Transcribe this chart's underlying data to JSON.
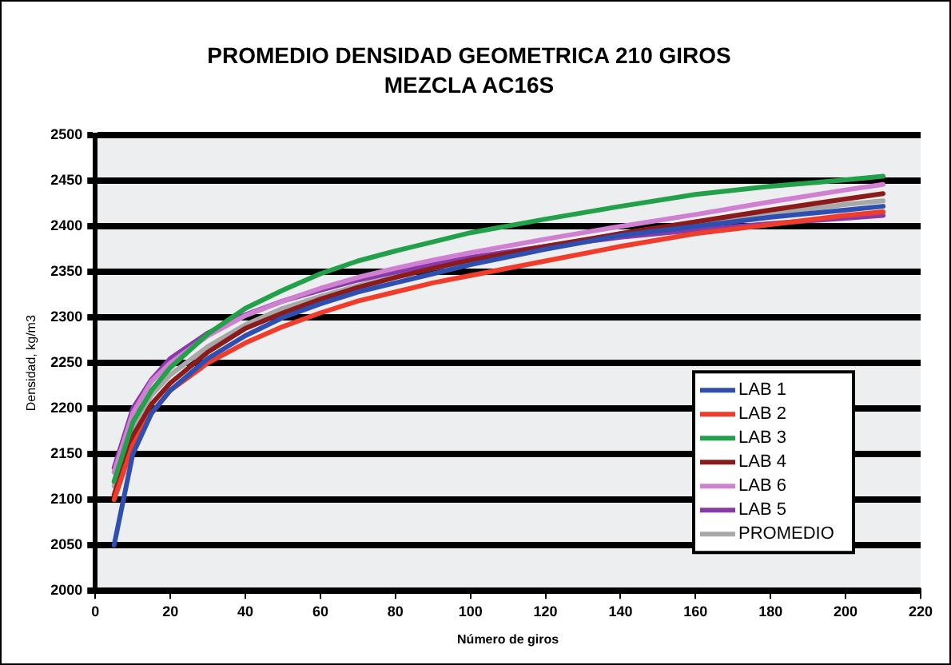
{
  "chart_data": {
    "type": "line",
    "title": "PROMEDIO DENSIDAD GEOMETRICA 210 GIROS",
    "subtitle": "MEZCLA AC16S",
    "xlabel": "Número de giros",
    "ylabel": "Densidad, kg/m3",
    "x": [
      5,
      10,
      15,
      20,
      30,
      40,
      50,
      60,
      70,
      80,
      90,
      100,
      120,
      140,
      160,
      180,
      200,
      210
    ],
    "series": [
      {
        "name": "LAB 1",
        "color": "#2e4fb0",
        "values": [
          2050,
          2150,
          2195,
          2220,
          2255,
          2280,
          2300,
          2315,
          2328,
          2338,
          2348,
          2358,
          2375,
          2390,
          2400,
          2410,
          2418,
          2422
        ]
      },
      {
        "name": "LAB 2",
        "color": "#f03c2a",
        "values": [
          2100,
          2160,
          2195,
          2220,
          2250,
          2272,
          2290,
          2305,
          2318,
          2328,
          2338,
          2346,
          2362,
          2378,
          2392,
          2402,
          2412,
          2416
        ]
      },
      {
        "name": "LAB 3",
        "color": "#22a04a",
        "values": [
          2120,
          2185,
          2220,
          2245,
          2282,
          2310,
          2330,
          2348,
          2362,
          2373,
          2383,
          2393,
          2408,
          2422,
          2435,
          2444,
          2451,
          2455
        ]
      },
      {
        "name": "LAB 4",
        "color": "#8b1a1a",
        "values": [
          2105,
          2170,
          2205,
          2228,
          2262,
          2288,
          2305,
          2320,
          2333,
          2344,
          2354,
          2363,
          2378,
          2392,
          2405,
          2418,
          2430,
          2436
        ]
      },
      {
        "name": "LAB 6",
        "color": "#d080d0",
        "values": [
          2130,
          2195,
          2230,
          2250,
          2280,
          2302,
          2318,
          2332,
          2344,
          2354,
          2363,
          2371,
          2386,
          2400,
          2413,
          2427,
          2440,
          2446
        ]
      },
      {
        "name": "LAB 5",
        "color": "#8a3aa8",
        "values": [
          2135,
          2200,
          2232,
          2255,
          2283,
          2303,
          2318,
          2330,
          2341,
          2350,
          2358,
          2366,
          2378,
          2388,
          2396,
          2403,
          2409,
          2412
        ]
      },
      {
        "name": "PROMEDIO",
        "color": "#a8a8a8",
        "values": [
          2115,
          2180,
          2215,
          2237,
          2268,
          2292,
          2310,
          2323,
          2335,
          2345,
          2354,
          2362,
          2378,
          2392,
          2404,
          2414,
          2424,
          2428
        ]
      }
    ],
    "xlim": [
      0,
      220
    ],
    "xticks": [
      0,
      20,
      40,
      60,
      80,
      100,
      120,
      140,
      160,
      180,
      200,
      220
    ],
    "ylim": [
      2000,
      2500
    ],
    "yticks": [
      2000,
      2050,
      2100,
      2150,
      2200,
      2250,
      2300,
      2350,
      2400,
      2450,
      2500
    ],
    "grid": "y",
    "legend": "bottom right",
    "marker": "none",
    "line_style": "solid"
  }
}
